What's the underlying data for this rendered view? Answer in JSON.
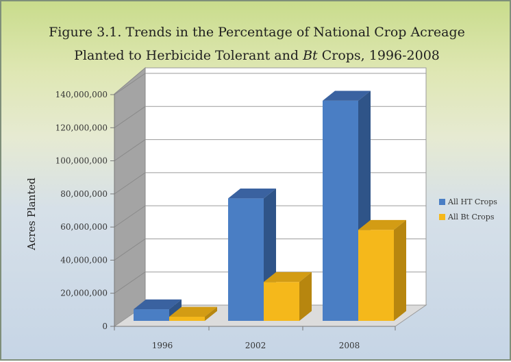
{
  "chart_data": {
    "type": "bar",
    "title_line1": "Figure 3.1.   Trends in the Percentage of National Crop Acreage",
    "title_line2_before": "Planted to Herbicide Tolerant and ",
    "title_line2_italic": "Bt",
    "title_line2_after": " Crops, 1996-2008",
    "ylabel": "Acres Planted",
    "xlabel": "",
    "categories": [
      "1996",
      "2002",
      "2008"
    ],
    "ylim": [
      0,
      140000000
    ],
    "yticks": [
      "0",
      "20,000,000",
      "40,000,000",
      "60,000,000",
      "80,000,000",
      "100,000,000",
      "120,000,000",
      "140,000,000"
    ],
    "ytick_values": [
      0,
      20000000,
      40000000,
      60000000,
      80000000,
      100000000,
      120000000,
      140000000
    ],
    "series": [
      {
        "name": "All HT Crops",
        "values": [
          7000000,
          74000000,
          133000000
        ],
        "color": "#4a7ec4",
        "top": "#3a62a0",
        "side": "#2f5488"
      },
      {
        "name": "All Bt Crops",
        "values": [
          2500000,
          23500000,
          55000000
        ],
        "color": "#f5b81b",
        "top": "#d39c14",
        "side": "#b7860f"
      }
    ],
    "grid": true,
    "legend_position": "right",
    "three_d": true
  }
}
